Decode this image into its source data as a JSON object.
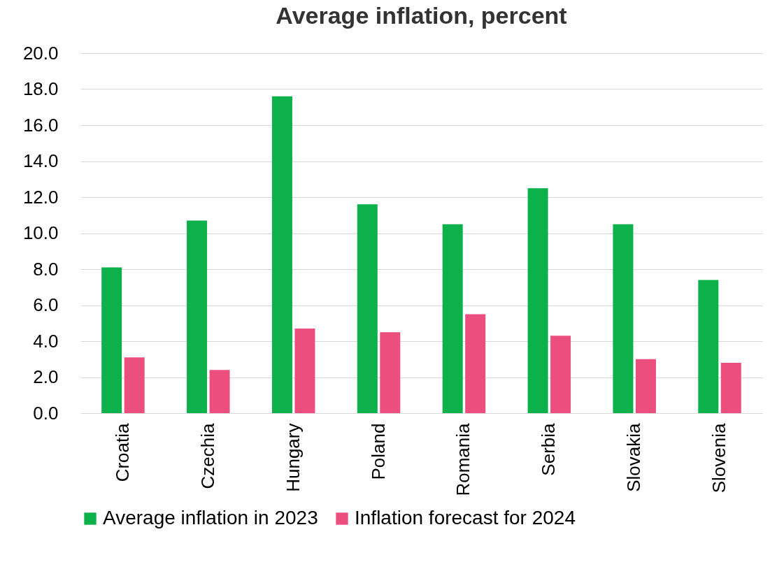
{
  "chart_data": {
    "type": "bar",
    "title": "Average inflation, percent",
    "categories": [
      "Croatia",
      "Czechia",
      "Hungary",
      "Poland",
      "Romania",
      "Serbia",
      "Slovakia",
      "Slovenia"
    ],
    "series": [
      {
        "name": "Average inflation in 2023",
        "color": "#0db14b",
        "values": [
          8.1,
          10.7,
          17.6,
          11.6,
          10.5,
          12.5,
          10.5,
          7.4
        ]
      },
      {
        "name": "Inflation forecast for 2024",
        "color": "#ec4f7d",
        "values": [
          3.1,
          2.4,
          4.7,
          4.5,
          5.5,
          4.3,
          3.0,
          2.8
        ]
      }
    ],
    "ylim": [
      0,
      20
    ],
    "yticks": [
      {
        "value": 0,
        "label": "0.0"
      },
      {
        "value": 2,
        "label": "2.0"
      },
      {
        "value": 4,
        "label": "4.0"
      },
      {
        "value": 6,
        "label": "6.0"
      },
      {
        "value": 8,
        "label": "8.0"
      },
      {
        "value": 10,
        "label": "10.0"
      },
      {
        "value": 12,
        "label": "12.0"
      },
      {
        "value": 14,
        "label": "14.0"
      },
      {
        "value": 16,
        "label": "16.0"
      },
      {
        "value": 18,
        "label": "18.0"
      },
      {
        "value": 20,
        "label": "20.0"
      }
    ],
    "grid": "y",
    "legend": "bottom"
  }
}
